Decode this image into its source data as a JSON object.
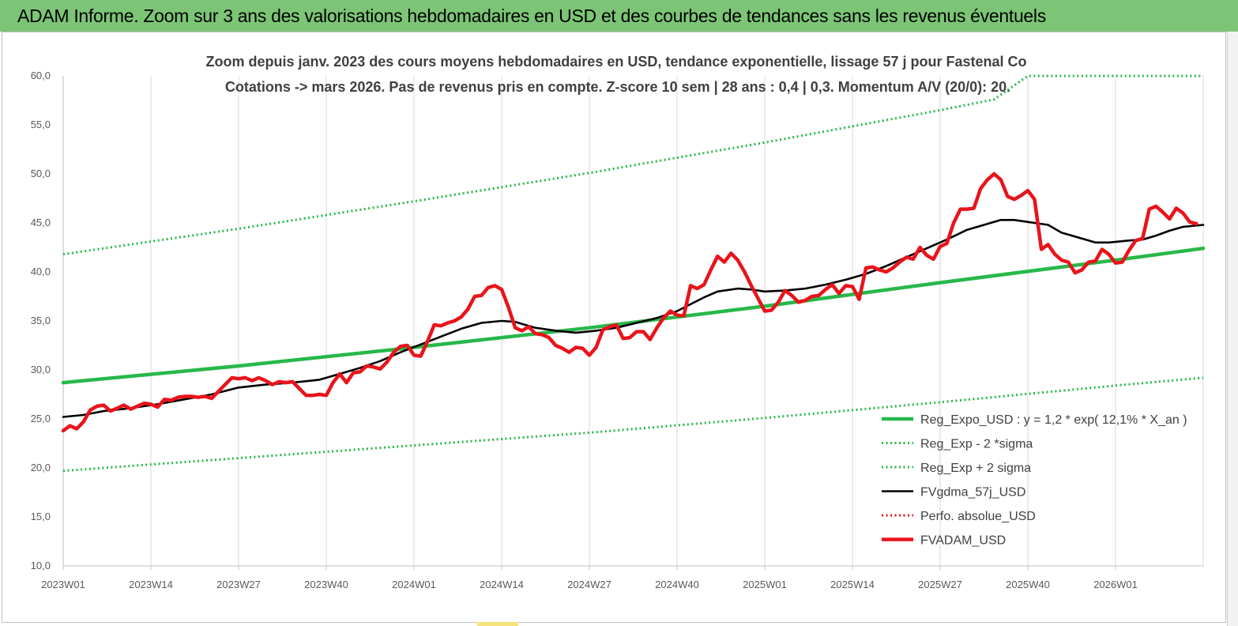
{
  "header": {
    "title": "ADAM Informe. Zoom sur 3 ans des valorisations hebdomadaires en USD et des courbes de tendances sans les revenus éventuels"
  },
  "colors": {
    "banner": "#7cc576",
    "trend": "#27b84a",
    "bands": "#27b84a",
    "smooth": "#000000",
    "price": "#e8141b",
    "perfo": "#e8141b"
  },
  "chart_data": {
    "type": "line",
    "title_lines": [
      "Zoom depuis janv. 2023 des cours moyens hebdomadaires en USD, tendance exponentielle, lissage 57 j pour Fastenal Co",
      "Cotations -> mars 2026. Pas de revenus pris en compte. Z-score 10 sem  | 28 ans : 0,4 | 0,3. Momentum A/V (20/0): 20."
    ],
    "x_tick_labels": [
      "2023W01",
      "2023W14",
      "2023W27",
      "2023W40",
      "2024W01",
      "2024W14",
      "2024W27",
      "2024W40",
      "2025W01",
      "2025W14",
      "2025W27",
      "2025W40",
      "2026W01"
    ],
    "x_tick_weeks": [
      0,
      13,
      26,
      39,
      52,
      65,
      78,
      91,
      104,
      117,
      130,
      143,
      156
    ],
    "x_range_weeks": [
      0,
      169
    ],
    "y_tick_labels": [
      "10,0",
      "15,0",
      "20,0",
      "25,0",
      "30,0",
      "35,0",
      "40,0",
      "45,0",
      "50,0",
      "55,0",
      "60,0"
    ],
    "ylim": [
      10,
      60
    ],
    "grid": "vertical",
    "legend_position": "bottom-right",
    "series": [
      {
        "name": "Reg_Expo_USD : y = 1,2  * exp( 12,1% *  X_an )",
        "style": "thick-solid",
        "color": "#27b84a",
        "points": [
          [
            0,
            28.7
          ],
          [
            26,
            30.4
          ],
          [
            52,
            32.3
          ],
          [
            78,
            34.3
          ],
          [
            104,
            36.5
          ],
          [
            130,
            38.9
          ],
          [
            156,
            41.2
          ],
          [
            169,
            42.4
          ]
        ]
      },
      {
        "name": "Reg_Exp - 2 *sigma",
        "style": "dotted",
        "color": "#27b84a",
        "points": [
          [
            0,
            19.7
          ],
          [
            26,
            21.0
          ],
          [
            52,
            22.3
          ],
          [
            78,
            23.6
          ],
          [
            104,
            25.1
          ],
          [
            130,
            26.7
          ],
          [
            156,
            28.4
          ],
          [
            169,
            29.2
          ]
        ]
      },
      {
        "name": "Reg_Exp + 2 sigma",
        "style": "dotted",
        "color": "#27b84a",
        "points": [
          [
            0,
            41.8
          ],
          [
            26,
            44.4
          ],
          [
            52,
            47.2
          ],
          [
            78,
            50.1
          ],
          [
            104,
            53.2
          ],
          [
            130,
            56.5
          ],
          [
            138,
            57.6
          ],
          [
            143,
            60.0
          ],
          [
            169,
            60.0
          ]
        ]
      },
      {
        "name": "FVgdma_57j_USD",
        "style": "solid",
        "color": "#000000",
        "points": [
          [
            0,
            25.2
          ],
          [
            3,
            25.4
          ],
          [
            6,
            25.8
          ],
          [
            10,
            26.1
          ],
          [
            14,
            26.5
          ],
          [
            18,
            27.0
          ],
          [
            22,
            27.5
          ],
          [
            26,
            28.2
          ],
          [
            30,
            28.5
          ],
          [
            34,
            28.7
          ],
          [
            38,
            29.0
          ],
          [
            41,
            29.6
          ],
          [
            44,
            30.2
          ],
          [
            47,
            30.9
          ],
          [
            50,
            31.8
          ],
          [
            53,
            32.6
          ],
          [
            56,
            33.4
          ],
          [
            59,
            34.2
          ],
          [
            62,
            34.8
          ],
          [
            65,
            35.0
          ],
          [
            67,
            34.9
          ],
          [
            70,
            34.3
          ],
          [
            73,
            34.0
          ],
          [
            76,
            33.8
          ],
          [
            79,
            34.0
          ],
          [
            82,
            34.3
          ],
          [
            85,
            34.8
          ],
          [
            88,
            35.3
          ],
          [
            91,
            36.0
          ],
          [
            93,
            36.7
          ],
          [
            95,
            37.4
          ],
          [
            97,
            38.0
          ],
          [
            100,
            38.3
          ],
          [
            102,
            38.2
          ],
          [
            104,
            38.0
          ],
          [
            107,
            38.1
          ],
          [
            110,
            38.3
          ],
          [
            113,
            38.7
          ],
          [
            116,
            39.2
          ],
          [
            119,
            39.8
          ],
          [
            122,
            40.6
          ],
          [
            125,
            41.5
          ],
          [
            128,
            42.4
          ],
          [
            131,
            43.3
          ],
          [
            134,
            44.3
          ],
          [
            137,
            44.9
          ],
          [
            139,
            45.3
          ],
          [
            141,
            45.3
          ],
          [
            143,
            45.1
          ],
          [
            146,
            44.8
          ],
          [
            148,
            44.0
          ],
          [
            151,
            43.4
          ],
          [
            153,
            43.0
          ],
          [
            155,
            43.0
          ],
          [
            158,
            43.2
          ],
          [
            160,
            43.3
          ],
          [
            162,
            43.7
          ],
          [
            164,
            44.2
          ],
          [
            166,
            44.6
          ],
          [
            169,
            44.8
          ]
        ]
      },
      {
        "name": "Perfo. absolue_USD",
        "style": "dotted",
        "color": "#e8141b",
        "points": []
      },
      {
        "name": "FVADAM_USD",
        "style": "thick-solid",
        "color": "#e8141b",
        "points": [
          [
            0,
            23.8
          ],
          [
            1,
            24.3
          ],
          [
            2,
            24.0
          ],
          [
            3,
            24.7
          ],
          [
            4,
            25.9
          ],
          [
            5,
            26.3
          ],
          [
            6,
            26.4
          ],
          [
            7,
            25.8
          ],
          [
            8,
            26.1
          ],
          [
            9,
            26.4
          ],
          [
            10,
            26.0
          ],
          [
            11,
            26.3
          ],
          [
            12,
            26.6
          ],
          [
            13,
            26.5
          ],
          [
            14,
            26.2
          ],
          [
            15,
            27.0
          ],
          [
            16,
            26.9
          ],
          [
            17,
            27.2
          ],
          [
            18,
            27.3
          ],
          [
            19,
            27.3
          ],
          [
            20,
            27.2
          ],
          [
            21,
            27.3
          ],
          [
            22,
            27.1
          ],
          [
            23,
            27.8
          ],
          [
            24,
            28.5
          ],
          [
            25,
            29.2
          ],
          [
            26,
            29.1
          ],
          [
            27,
            29.2
          ],
          [
            28,
            28.9
          ],
          [
            29,
            29.2
          ],
          [
            30,
            28.9
          ],
          [
            31,
            28.5
          ],
          [
            32,
            28.8
          ],
          [
            33,
            28.7
          ],
          [
            34,
            28.8
          ],
          [
            35,
            28.1
          ],
          [
            36,
            27.4
          ],
          [
            37,
            27.4
          ],
          [
            38,
            27.5
          ],
          [
            39,
            27.4
          ],
          [
            40,
            28.7
          ],
          [
            41,
            29.6
          ],
          [
            42,
            28.7
          ],
          [
            43,
            29.7
          ],
          [
            44,
            29.8
          ],
          [
            45,
            30.4
          ],
          [
            46,
            30.3
          ],
          [
            47,
            30.1
          ],
          [
            48,
            30.8
          ],
          [
            49,
            31.8
          ],
          [
            50,
            32.4
          ],
          [
            51,
            32.5
          ],
          [
            52,
            31.5
          ],
          [
            53,
            31.4
          ],
          [
            54,
            32.9
          ],
          [
            55,
            34.6
          ],
          [
            56,
            34.5
          ],
          [
            57,
            34.8
          ],
          [
            58,
            35.0
          ],
          [
            59,
            35.4
          ],
          [
            60,
            36.2
          ],
          [
            61,
            37.5
          ],
          [
            62,
            37.6
          ],
          [
            63,
            38.4
          ],
          [
            64,
            38.6
          ],
          [
            65,
            38.2
          ],
          [
            66,
            36.4
          ],
          [
            67,
            34.3
          ],
          [
            68,
            34.0
          ],
          [
            69,
            34.4
          ],
          [
            70,
            33.7
          ],
          [
            71,
            33.6
          ],
          [
            72,
            33.3
          ],
          [
            73,
            32.5
          ],
          [
            74,
            32.2
          ],
          [
            75,
            31.8
          ],
          [
            76,
            32.3
          ],
          [
            77,
            32.2
          ],
          [
            78,
            31.5
          ],
          [
            79,
            32.3
          ],
          [
            80,
            34.1
          ],
          [
            81,
            34.4
          ],
          [
            82,
            34.6
          ],
          [
            83,
            33.2
          ],
          [
            84,
            33.3
          ],
          [
            85,
            33.9
          ],
          [
            86,
            33.9
          ],
          [
            87,
            33.1
          ],
          [
            88,
            34.3
          ],
          [
            89,
            35.3
          ],
          [
            90,
            36.0
          ],
          [
            91,
            35.6
          ],
          [
            92,
            35.5
          ],
          [
            93,
            38.6
          ],
          [
            94,
            38.3
          ],
          [
            95,
            38.7
          ],
          [
            96,
            40.2
          ],
          [
            97,
            41.6
          ],
          [
            98,
            41.0
          ],
          [
            99,
            41.9
          ],
          [
            100,
            41.2
          ],
          [
            101,
            40.0
          ],
          [
            102,
            38.6
          ],
          [
            103,
            37.3
          ],
          [
            104,
            36.0
          ],
          [
            105,
            36.1
          ],
          [
            106,
            36.9
          ],
          [
            107,
            38.1
          ],
          [
            108,
            37.6
          ],
          [
            109,
            36.9
          ],
          [
            110,
            37.1
          ],
          [
            111,
            37.5
          ],
          [
            112,
            37.6
          ],
          [
            113,
            38.2
          ],
          [
            114,
            38.7
          ],
          [
            115,
            37.8
          ],
          [
            116,
            38.6
          ],
          [
            117,
            38.5
          ],
          [
            118,
            37.2
          ],
          [
            119,
            40.4
          ],
          [
            120,
            40.5
          ],
          [
            121,
            40.2
          ],
          [
            122,
            40.0
          ],
          [
            123,
            40.4
          ],
          [
            124,
            41.0
          ],
          [
            125,
            41.5
          ],
          [
            126,
            41.3
          ],
          [
            127,
            42.5
          ],
          [
            128,
            41.7
          ],
          [
            129,
            41.3
          ],
          [
            130,
            42.6
          ],
          [
            131,
            42.9
          ],
          [
            132,
            45.0
          ],
          [
            133,
            46.4
          ],
          [
            134,
            46.4
          ],
          [
            135,
            46.5
          ],
          [
            136,
            48.5
          ],
          [
            137,
            49.4
          ],
          [
            138,
            50.0
          ],
          [
            139,
            49.4
          ],
          [
            140,
            47.7
          ],
          [
            141,
            47.4
          ],
          [
            142,
            47.8
          ],
          [
            143,
            48.3
          ],
          [
            144,
            47.4
          ],
          [
            145,
            42.3
          ],
          [
            146,
            42.8
          ],
          [
            147,
            41.8
          ],
          [
            148,
            41.2
          ],
          [
            149,
            41.0
          ],
          [
            150,
            39.9
          ],
          [
            151,
            40.2
          ],
          [
            152,
            41.0
          ],
          [
            153,
            41.1
          ],
          [
            154,
            42.3
          ],
          [
            155,
            41.8
          ],
          [
            156,
            40.9
          ],
          [
            157,
            41.0
          ],
          [
            158,
            42.2
          ],
          [
            159,
            43.2
          ],
          [
            160,
            43.4
          ],
          [
            161,
            46.4
          ],
          [
            162,
            46.7
          ],
          [
            163,
            46.1
          ],
          [
            164,
            45.4
          ],
          [
            165,
            46.5
          ],
          [
            166,
            46.0
          ],
          [
            167,
            45.1
          ],
          [
            168,
            44.9
          ]
        ]
      }
    ]
  }
}
